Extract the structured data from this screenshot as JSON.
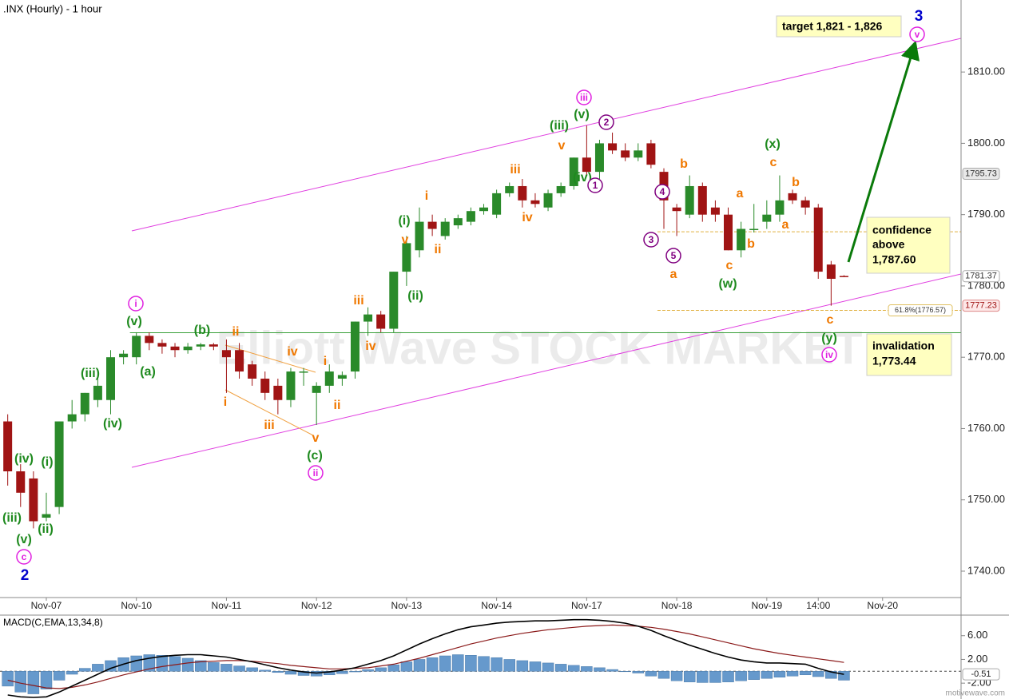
{
  "chart_data": {
    "type": "candlestick",
    "title": ".INX (Hourly) - 1 hour",
    "watermark": "Elliott Wave STOCK MARKET",
    "footer": "motivewave.com",
    "up_color": "#2a8a2a",
    "down_color": "#a01414",
    "x": [
      0,
      1,
      2,
      3,
      4,
      5,
      6,
      7,
      8,
      9,
      10,
      11,
      12,
      13,
      14,
      15,
      16,
      17,
      18,
      19,
      20,
      21,
      22,
      23,
      24,
      25,
      26,
      27,
      28,
      29,
      30,
      31,
      32,
      33,
      34,
      35,
      36,
      37,
      38,
      39,
      40,
      41,
      42,
      43,
      44,
      45,
      46,
      47,
      48,
      49,
      50,
      51,
      52,
      53,
      54,
      55,
      56,
      57,
      58,
      59,
      60,
      61,
      62,
      63,
      64,
      65
    ],
    "open": [
      1761,
      1754,
      1753,
      1747.5,
      1749,
      1761,
      1762,
      1764,
      1764,
      1770,
      1770,
      1773,
      1772,
      1771.5,
      1771,
      1771.5,
      1771.8,
      1771,
      1771,
      1769,
      1767,
      1766,
      1764,
      1768,
      1765,
      1766,
      1767,
      1768,
      1775,
      1776,
      1774,
      1782,
      1785,
      1789,
      1787,
      1788.5,
      1789,
      1790.5,
      1790,
      1793,
      1794,
      1792,
      1791,
      1793,
      1794,
      1798,
      1796,
      1800,
      1799,
      1798,
      1800,
      1796,
      1791,
      1790,
      1794,
      1791,
      1790,
      1785,
      1788,
      1789,
      1790,
      1793,
      1792,
      1791,
      1783,
      1781.4
    ],
    "high": [
      1762,
      1755,
      1754,
      1751,
      1761,
      1764,
      1765,
      1768,
      1771,
      1771,
      1773.5,
      1773.5,
      1772.5,
      1772,
      1772,
      1772,
      1772,
      1772.5,
      1772,
      1769.5,
      1768,
      1767,
      1768.5,
      1768.5,
      1766.5,
      1769,
      1768,
      1775,
      1777,
      1776.5,
      1782,
      1787,
      1791,
      1790,
      1789.5,
      1790,
      1791,
      1791.5,
      1793.5,
      1794.5,
      1795,
      1793,
      1793.5,
      1794.5,
      1798,
      1802.5,
      1800.5,
      1801.5,
      1800,
      1800,
      1800.5,
      1796.5,
      1791.5,
      1795.5,
      1794.5,
      1792,
      1791,
      1789,
      1791.5,
      1792,
      1795.5,
      1793.5,
      1792.5,
      1791.5,
      1783.5,
      1781.5
    ],
    "low": [
      1752,
      1749,
      1746,
      1747,
      1748,
      1760,
      1761,
      1763,
      1762,
      1769,
      1769,
      1771,
      1770.5,
      1770,
      1770.5,
      1771,
      1771,
      1765,
      1767,
      1766,
      1764,
      1762,
      1763,
      1766,
      1760.5,
      1765,
      1766,
      1767,
      1773,
      1773.5,
      1773.5,
      1780,
      1784,
      1787,
      1786.5,
      1788,
      1788.5,
      1790,
      1789.5,
      1792.5,
      1791,
      1791,
      1790.5,
      1792.5,
      1793.5,
      1795.5,
      1795,
      1798.5,
      1797.5,
      1797.5,
      1796.5,
      1788,
      1787,
      1789.5,
      1789,
      1789,
      1785,
      1784,
      1787.5,
      1788,
      1789,
      1791.5,
      1790,
      1781,
      1777.23,
      1781.3
    ],
    "close": [
      1754,
      1751,
      1747,
      1748,
      1761,
      1762,
      1765,
      1766,
      1770,
      1770.5,
      1773,
      1772,
      1771.5,
      1771,
      1771.5,
      1771.8,
      1771.5,
      1770,
      1768,
      1767,
      1765,
      1764,
      1768,
      1768,
      1766,
      1768,
      1767.5,
      1775,
      1776,
      1774,
      1782,
      1786,
      1789,
      1788,
      1789,
      1789.5,
      1790.5,
      1791,
      1793,
      1794,
      1792,
      1791.5,
      1793,
      1794,
      1798,
      1796,
      1800,
      1799,
      1798,
      1799,
      1797,
      1792,
      1790.5,
      1794,
      1790,
      1790,
      1785,
      1788,
      1788,
      1790,
      1792,
      1792,
      1791,
      1782,
      1781,
      1781.37
    ],
    "xlim": [
      -0.6,
      74.1
    ],
    "xticks": [
      {
        "value": 3,
        "label": "Nov-07"
      },
      {
        "value": 10,
        "label": "Nov-10"
      },
      {
        "value": 17,
        "label": "Nov-11"
      },
      {
        "value": 24,
        "label": "Nov-12"
      },
      {
        "value": 31,
        "label": "Nov-13"
      },
      {
        "value": 38,
        "label": "Nov-14"
      },
      {
        "value": 45,
        "label": "Nov-17"
      },
      {
        "value": 52,
        "label": "Nov-18"
      },
      {
        "value": 59,
        "label": "Nov-19"
      },
      {
        "value": 63,
        "label": "14:00"
      },
      {
        "value": 68,
        "label": "Nov-20"
      }
    ],
    "ylim": [
      1736.3,
      1820.1
    ],
    "yticks": [
      {
        "value": 1740,
        "label": "1740.00"
      },
      {
        "value": 1750,
        "label": "1750.00"
      },
      {
        "value": 1760,
        "label": "1760.00"
      },
      {
        "value": 1770,
        "label": "1770.00"
      },
      {
        "value": 1780,
        "label": "1780.00"
      },
      {
        "value": 1790,
        "label": "1790.00"
      },
      {
        "value": 1800,
        "label": "1800.00"
      },
      {
        "value": 1810,
        "label": "1810.00"
      }
    ],
    "price_marker": 1795.73,
    "confidence_level": 1787.6,
    "fib_level": 1776.57,
    "fib_label": "61.8%(1776.57)",
    "invalidation_level": 1773.44,
    "target_box": "target 1,821 - 1,826",
    "confidence_box": [
      "confidence",
      "above",
      "1,787.60"
    ],
    "invalidation_box": [
      "invalidation",
      "1,773.44"
    ],
    "annotations": [
      {
        "text": "(iii)",
        "color": "#1e8a1e"
      },
      {
        "text": "(iv)",
        "color": "#1e8a1e"
      },
      {
        "text": "(i)",
        "color": "#1e8a1e"
      },
      {
        "text": "(ii)",
        "color": "#1e8a1e"
      },
      {
        "text": "(v)",
        "color": "#1e8a1e"
      },
      {
        "text": "(iii)",
        "color": "#1e8a1e"
      },
      {
        "text": "(iv)",
        "color": "#1e8a1e"
      },
      {
        "text": "(v)",
        "color": "#1e8a1e"
      },
      {
        "text": "(a)",
        "color": "#1e8a1e"
      },
      {
        "text": "(b)",
        "color": "#1e8a1e"
      },
      {
        "text": "(c)",
        "color": "#1e8a1e"
      },
      {
        "text": "(i)",
        "color": "#1e8a1e"
      },
      {
        "text": "(ii)",
        "color": "#1e8a1e"
      },
      {
        "text": "(iii)",
        "color": "#1e8a1e"
      },
      {
        "text": "(v)",
        "color": "#1e8a1e"
      },
      {
        "text": "(iv)",
        "color": "#1e8a1e"
      },
      {
        "text": "(x)",
        "color": "#1e8a1e"
      },
      {
        "text": "(w)",
        "color": "#1e8a1e"
      },
      {
        "text": "(y)",
        "color": "#1e8a1e"
      },
      {
        "text": "ii",
        "color": "#f07800"
      },
      {
        "text": "i",
        "color": "#f07800"
      },
      {
        "text": "iii",
        "color": "#f07800"
      },
      {
        "text": "iv",
        "color": "#f07800"
      },
      {
        "text": "i",
        "color": "#f07800"
      },
      {
        "text": "ii",
        "color": "#f07800"
      },
      {
        "text": "v",
        "color": "#f07800"
      },
      {
        "text": "iii",
        "color": "#f07800"
      },
      {
        "text": "iv",
        "color": "#f07800"
      },
      {
        "text": "v",
        "color": "#f07800"
      },
      {
        "text": "i",
        "color": "#f07800"
      },
      {
        "text": "ii",
        "color": "#f07800"
      },
      {
        "text": "iii",
        "color": "#f07800"
      },
      {
        "text": "iv",
        "color": "#f07800"
      },
      {
        "text": "v",
        "color": "#f07800"
      },
      {
        "text": "b",
        "color": "#f07800"
      },
      {
        "text": "a",
        "color": "#f07800"
      },
      {
        "text": "a",
        "color": "#f07800"
      },
      {
        "text": "b",
        "color": "#f07800"
      },
      {
        "text": "c",
        "color": "#f07800"
      },
      {
        "text": "c",
        "color": "#f07800"
      },
      {
        "text": "b",
        "color": "#f07800"
      },
      {
        "text": "a",
        "color": "#f07800"
      },
      {
        "text": "c",
        "color": "#f07800"
      },
      {
        "text": "i",
        "color": "#e020e0",
        "circled": true
      },
      {
        "text": "ii",
        "color": "#e020e0",
        "circled": true
      },
      {
        "text": "iii",
        "color": "#e020e0",
        "circled": true
      },
      {
        "text": "iv",
        "color": "#e020e0",
        "circled": true
      },
      {
        "text": "c",
        "color": "#e020e0",
        "circled": true
      },
      {
        "text": "v",
        "color": "#e020e0",
        "circled": true
      },
      {
        "text": "1",
        "color": "#800080",
        "circled": true
      },
      {
        "text": "2",
        "color": "#800080",
        "circled": true
      },
      {
        "text": "3",
        "color": "#800080",
        "circled": true
      },
      {
        "text": "4",
        "color": "#800080",
        "circled": true
      },
      {
        "text": "5",
        "color": "#800080",
        "circled": true
      },
      {
        "text": "2",
        "color": "#0000cc",
        "bold": true
      },
      {
        "text": "3",
        "color": "#0000cc",
        "bold": true
      }
    ],
    "macd": {
      "label": "MACD(C,EMA,13,34,8)",
      "line_color": "#000000",
      "signal_color": "#8b1a1a",
      "hist_color": "#6699cc",
      "ylim": [
        -4.67,
        9.33
      ],
      "yticks": [
        {
          "value": 6,
          "label": "6.00"
        },
        {
          "value": 2,
          "label": "2.00"
        },
        {
          "value": -2,
          "label": "-2.00"
        }
      ],
      "histogram": [
        -2.5,
        -3.5,
        -3.8,
        -3,
        -1.5,
        -0.5,
        0.5,
        1.2,
        1.8,
        2.3,
        2.6,
        2.8,
        2.7,
        2.5,
        2.2,
        1.8,
        1.5,
        1.2,
        0.9,
        0.6,
        0.2,
        -0.2,
        -0.5,
        -0.7,
        -0.8,
        -0.6,
        -0.4,
        -0.1,
        0.3,
        0.6,
        1.1,
        1.6,
        2,
        2.3,
        2.6,
        2.8,
        2.7,
        2.5,
        2.3,
        2,
        1.8,
        1.6,
        1.4,
        1.2,
        1,
        0.8,
        0.6,
        0.3,
        0,
        -0.3,
        -0.8,
        -1.2,
        -1.6,
        -1.8,
        -1.9,
        -1.9,
        -1.8,
        -1.6,
        -1.4,
        -1.2,
        -1,
        -0.8,
        -0.6,
        -0.9,
        -1.2,
        -1.5
      ],
      "line": [
        -4,
        -4.3,
        -4.4,
        -4.3,
        -3.5,
        -2.5,
        -1.5,
        -0.5,
        0.5,
        1.2,
        1.8,
        2.2,
        2.5,
        2.7,
        2.8,
        2.8,
        2.6,
        2.4,
        2,
        1.6,
        1.1,
        0.6,
        0.2,
        -0.1,
        -0.3,
        -0.1,
        0.2,
        0.6,
        1.2,
        1.8,
        2.6,
        3.6,
        4.6,
        5.5,
        6.3,
        7,
        7.5,
        7.8,
        8.1,
        8.3,
        8.4,
        8.5,
        8.5,
        8.6,
        8.7,
        8.7,
        8.6,
        8.4,
        8.1,
        7.6,
        6.9,
        6,
        5.2,
        4.4,
        3.7,
        3,
        2.4,
        1.9,
        1.6,
        1.4,
        1.4,
        1.3,
        1.2,
        0.5,
        -0.1,
        -0.51
      ],
      "signal": [
        -1.5,
        -2,
        -2.4,
        -2.8,
        -2.9,
        -2.7,
        -2.3,
        -1.8,
        -1.2,
        -0.6,
        -0.1,
        0.4,
        0.8,
        1.1,
        1.4,
        1.6,
        1.7,
        1.8,
        1.8,
        1.7,
        1.5,
        1.3,
        1,
        0.8,
        0.6,
        0.4,
        0.4,
        0.5,
        0.6,
        0.9,
        1.2,
        1.7,
        2.2,
        2.8,
        3.4,
        4,
        4.6,
        5.1,
        5.6,
        6,
        6.4,
        6.7,
        7,
        7.2,
        7.4,
        7.6,
        7.7,
        7.8,
        7.7,
        7.6,
        7.4,
        7.1,
        6.7,
        6.3,
        5.8,
        5.3,
        4.8,
        4.3,
        3.8,
        3.4,
        3,
        2.7,
        2.4,
        2.1,
        1.8,
        1.5
      ]
    }
  }
}
